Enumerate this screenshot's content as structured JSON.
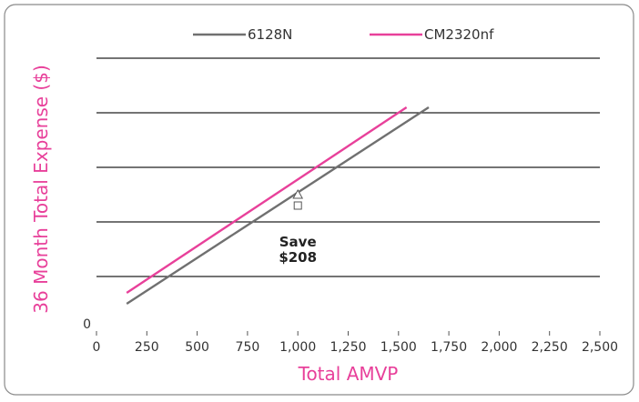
{
  "chart_data": {
    "type": "line",
    "xlabel": "Total AMVP",
    "ylabel": "36 Month Total Expense ($)",
    "axis_title_color": "#e8409a",
    "xlim": [
      0,
      2500
    ],
    "x_ticks": [
      "0",
      "250",
      "500",
      "750",
      "1,000",
      "1,250",
      "1,500",
      "1,750",
      "2,000",
      "2,250",
      "2,500"
    ],
    "y_ticks": [
      "0"
    ],
    "grid": "horizontal",
    "legend_position": "top",
    "series": [
      {
        "name": "6128N",
        "color": "#707070",
        "x": [
          150,
          1650
        ],
        "y": [
          0.5,
          4.1
        ],
        "marker": "square",
        "marker_x": 1000,
        "marker_y": 2.3
      },
      {
        "name": "CM2320nf",
        "color": "#e8409a",
        "x": [
          150,
          1540
        ],
        "y": [
          0.7,
          4.1
        ],
        "marker": "triangle",
        "marker_x": 1000,
        "marker_y": 2.5
      }
    ],
    "annotations": [
      {
        "lines": [
          "Save",
          "$208"
        ],
        "x": 1000,
        "y": 1.55
      }
    ]
  }
}
